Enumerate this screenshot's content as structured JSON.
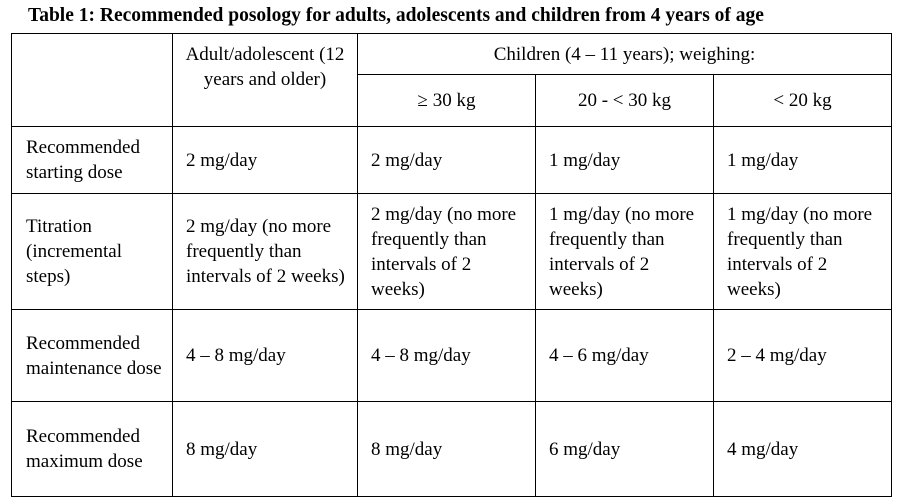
{
  "caption": "Table 1: Recommended posology for adults, adolescents and children from 4 years of age",
  "header": {
    "adult_col": "Adult/adolescent (12 years and older)",
    "children_group": "Children (4 – 11 years); weighing:",
    "children_cols": [
      "≥ 30 kg",
      "20 - < 30 kg",
      "< 20 kg"
    ]
  },
  "rows": [
    {
      "label": "Recommended starting dose",
      "values": [
        "2 mg/day",
        "2 mg/day",
        "1 mg/day",
        "1 mg/day"
      ]
    },
    {
      "label": "Titration (incremental steps)",
      "values": [
        "2 mg/day (no more frequently than intervals of 2 weeks)",
        "2 mg/day (no more frequently than intervals of 2 weeks)",
        "1 mg/day (no more frequently than intervals of 2 weeks)",
        "1 mg/day (no more frequently than intervals of 2 weeks)"
      ]
    },
    {
      "label": "Recommended maintenance dose",
      "values": [
        "4 – 8 mg/day",
        "4 – 8 mg/day",
        "4 – 6 mg/day",
        "2 – 4 mg/day"
      ]
    },
    {
      "label": "Recommended maximum dose",
      "values": [
        "8 mg/day",
        "8 mg/day",
        "6 mg/day",
        "4 mg/day"
      ]
    }
  ]
}
